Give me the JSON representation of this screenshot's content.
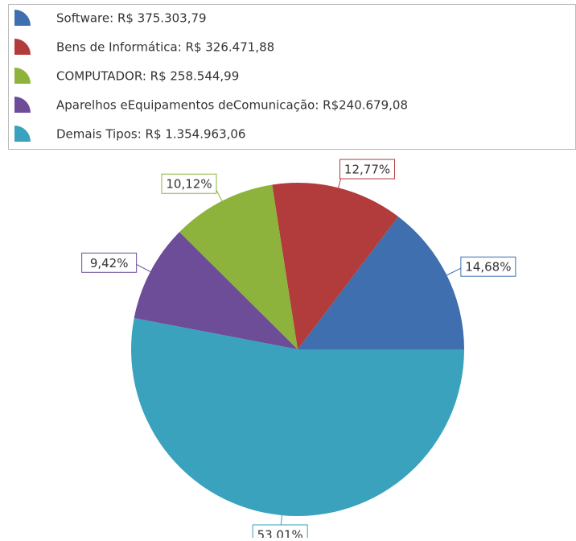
{
  "chart_data": {
    "type": "pie",
    "categories": [
      "Software: R$ 375.303,79",
      "Bens de Informática: R$ 326.471,88",
      "COMPUTADOR: R$ 258.544,99",
      "Aparelhos eEquipamentos deComunicação: R$240.679,08",
      "Demais Tipos: R$ 1.354.963,06"
    ],
    "values": [
      14.68,
      12.77,
      10.12,
      9.42,
      53.01
    ],
    "value_labels": [
      "14,68%",
      "12,77%",
      "10,12%",
      "9,42%",
      "53,01%"
    ],
    "colors": [
      "#3f6fae",
      "#b23b3b",
      "#8db33c",
      "#6d4c98",
      "#3aa2bd"
    ]
  }
}
